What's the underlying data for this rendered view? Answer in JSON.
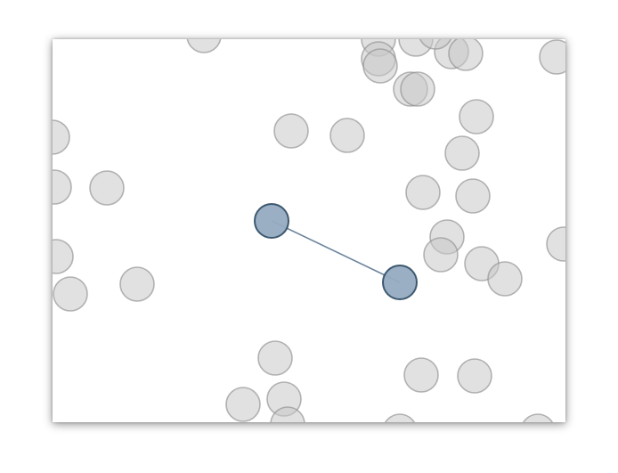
{
  "colors": {
    "background": "#ffffff",
    "node_fill": "#c9c9c9",
    "node_stroke": "#8f8f8f",
    "selected_fill": "#95abc0",
    "selected_stroke": "#2f4b63",
    "link": "#6b849b"
  },
  "nodes": [
    {
      "state": "idle"
    },
    {
      "state": "idle"
    },
    {
      "state": "idle"
    },
    {
      "state": "idle"
    },
    {
      "state": "idle"
    },
    {
      "state": "idle"
    },
    {
      "state": "idle"
    },
    {
      "state": "idle"
    },
    {
      "state": "idle"
    },
    {
      "state": "idle"
    },
    {
      "state": "idle"
    },
    {
      "state": "idle"
    },
    {
      "state": "idle"
    },
    {
      "state": "idle"
    },
    {
      "state": "idle"
    },
    {
      "state": "idle"
    },
    {
      "state": "idle"
    },
    {
      "state": "idle"
    },
    {
      "state": "idle"
    },
    {
      "state": "idle"
    },
    {
      "state": "idle"
    },
    {
      "state": "idle"
    },
    {
      "state": "idle"
    },
    {
      "state": "idle"
    },
    {
      "state": "idle"
    },
    {
      "state": "idle"
    },
    {
      "state": "idle"
    },
    {
      "state": "idle"
    },
    {
      "state": "idle"
    },
    {
      "state": "idle"
    },
    {
      "state": "idle"
    },
    {
      "state": "idle"
    },
    {
      "state": "idle"
    },
    {
      "state": "idle"
    },
    {
      "state": "idle"
    },
    {
      "state": "idle"
    },
    {
      "state": "idle"
    },
    {
      "state": "selected"
    },
    {
      "state": "selected"
    }
  ],
  "links": [
    {
      "from": 37,
      "to": 38
    }
  ]
}
